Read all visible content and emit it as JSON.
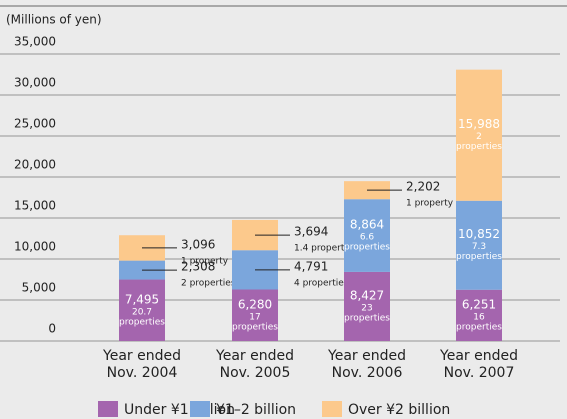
{
  "chart_data": {
    "type": "stacked-bar",
    "y_axis_label": "(Millions of yen)",
    "categories": [
      [
        "Year ended",
        "Nov. 2004"
      ],
      [
        "Year ended",
        "Nov. 2005"
      ],
      [
        "Year ended",
        "Nov. 2006"
      ],
      [
        "Year ended",
        "Nov. 2007"
      ]
    ],
    "ylim": [
      0,
      35000
    ],
    "yticks": [
      0,
      {
        "value": 5000,
        "label": "5,000"
      },
      {
        "value": 10000,
        "label": "10,000"
      },
      {
        "value": 15000,
        "label": "15,000"
      },
      {
        "value": 20000,
        "label": "20,000"
      },
      {
        "value": 25000,
        "label": "25,000"
      },
      {
        "value": 30000,
        "label": "30,000"
      },
      {
        "value": 35000,
        "label": "35,000"
      }
    ],
    "grid": true,
    "series": [
      {
        "name": "Under ¥1 billion",
        "color": "#a465ae",
        "values": [
          7495,
          6280,
          8427,
          6251
        ],
        "value_labels": [
          "7,495",
          "6,280",
          "8,427",
          "6,251"
        ],
        "property_labels": [
          [
            "20.7",
            "properties"
          ],
          [
            "17",
            "properties"
          ],
          [
            "23",
            "properties"
          ],
          [
            "16",
            "properties"
          ]
        ]
      },
      {
        "name": "¥1–2 billion",
        "color": "#7ba6dc",
        "values": [
          2308,
          4791,
          8864,
          10852
        ],
        "value_labels": [
          "2,308",
          "4,791",
          "8,864",
          "10,852"
        ],
        "property_labels": [
          [
            "2 properties"
          ],
          [
            "4 properties"
          ],
          [
            "6.6",
            "properties"
          ],
          [
            "7.3",
            "properties"
          ]
        ]
      },
      {
        "name": "Over ¥2 billion",
        "color": "#fcc98c",
        "values": [
          3096,
          3694,
          2202,
          15988
        ],
        "value_labels": [
          "3,096",
          "3,694",
          "2,202",
          "15,988"
        ],
        "property_labels": [
          [
            "1 property"
          ],
          [
            "1.4 properties"
          ],
          [
            "1 property"
          ],
          [
            "2",
            "properties"
          ]
        ]
      }
    ]
  }
}
